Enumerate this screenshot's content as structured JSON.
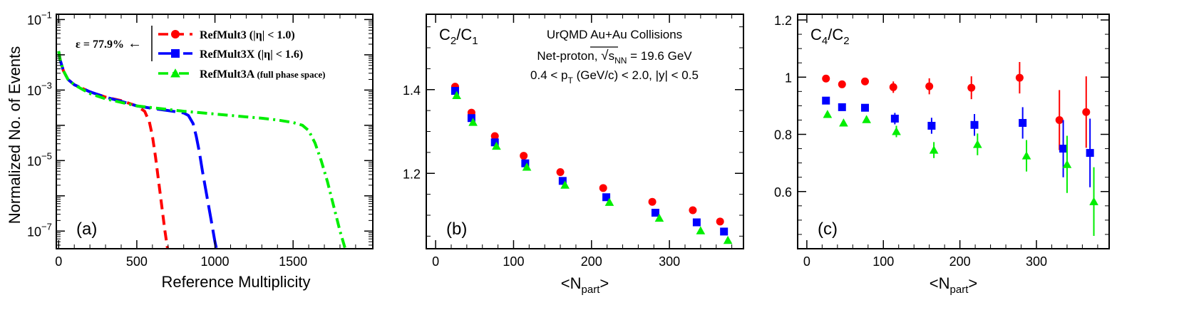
{
  "colors": {
    "red": "#ff0000",
    "blue": "#0000ff",
    "green": "#00ee00",
    "axis": "#000000"
  },
  "chart_data": [
    {
      "panel_label": "(a)",
      "type": "line",
      "xlabel": "Reference Multiplicity",
      "ylabel": "Normalized No. of Events",
      "y_scale": "log",
      "xlim": [
        -15,
        2010
      ],
      "ylim_log10": [
        -7.5,
        -0.85
      ],
      "x_ticks": [
        0,
        500,
        1000,
        1500
      ],
      "x_tick_labels": [
        "0",
        "500",
        "1000",
        "1500"
      ],
      "y_tick_exponents": [
        -1,
        -3,
        -5,
        -7
      ],
      "y_tick_labels": [
        "10",
        "10",
        "10",
        "10"
      ],
      "y_tick_sup": [
        "−1",
        "−3",
        "−5",
        "−7"
      ],
      "annotation": {
        "text": "ε = 77.9%",
        "arrow": "←",
        "points_to": "RefMult3X"
      },
      "legend_position": "top-right",
      "series": [
        {
          "name": "RefMult3",
          "legend_suffix": "(|η| < 1.0)",
          "color": "red",
          "marker": "circle",
          "dash": "dashed",
          "x": [
            0,
            10,
            30,
            60,
            100,
            200,
            300,
            400,
            500,
            550,
            580,
            600,
            620,
            640,
            660,
            680,
            700
          ],
          "log10_y": [
            -1.9,
            -2.15,
            -2.45,
            -2.7,
            -2.85,
            -3.05,
            -3.2,
            -3.3,
            -3.45,
            -3.6,
            -3.9,
            -4.3,
            -4.9,
            -5.6,
            -6.3,
            -7.0,
            -7.6
          ]
        },
        {
          "name": "RefMult3X",
          "legend_suffix": "(|η| < 1.6)",
          "color": "blue",
          "marker": "square",
          "dash": "long-dash",
          "x": [
            0,
            10,
            30,
            60,
            100,
            200,
            300,
            400,
            500,
            600,
            700,
            800,
            830,
            860,
            880,
            900,
            920,
            940,
            960,
            980,
            1000,
            1020
          ],
          "log10_y": [
            -1.9,
            -2.15,
            -2.45,
            -2.7,
            -2.85,
            -3.05,
            -3.2,
            -3.32,
            -3.45,
            -3.52,
            -3.58,
            -3.65,
            -3.72,
            -3.95,
            -4.3,
            -4.75,
            -5.3,
            -5.8,
            -6.3,
            -6.8,
            -7.3,
            -7.7
          ]
        },
        {
          "name": "RefMult3A",
          "legend_suffix": "(full phase space)",
          "color": "green",
          "marker": "triangle",
          "dash": "dash-dot",
          "x": [
            0,
            10,
            30,
            60,
            100,
            200,
            300,
            400,
            500,
            600,
            700,
            800,
            900,
            1000,
            1100,
            1200,
            1300,
            1400,
            1500,
            1560,
            1600,
            1640,
            1680,
            1720,
            1760,
            1800,
            1840
          ],
          "log10_y": [
            -1.9,
            -2.15,
            -2.45,
            -2.7,
            -2.85,
            -3.1,
            -3.25,
            -3.35,
            -3.45,
            -3.5,
            -3.55,
            -3.6,
            -3.64,
            -3.68,
            -3.72,
            -3.76,
            -3.8,
            -3.85,
            -3.92,
            -4.0,
            -4.15,
            -4.5,
            -5.0,
            -5.6,
            -6.3,
            -7.0,
            -7.6
          ]
        }
      ]
    },
    {
      "panel_label": "(b)",
      "type": "scatter",
      "xlabel": "<N",
      "xlabel_sub": "part",
      "xlabel_end": ">",
      "ylabel": "C",
      "ylabel_sub1": "2",
      "ylabel_mid": "/C",
      "ylabel_sub2": "1",
      "xlim": [
        -12,
        395
      ],
      "ylim": [
        1.02,
        1.58
      ],
      "x_ticks": [
        0,
        100,
        200,
        300
      ],
      "x_tick_labels": [
        "0",
        "100",
        "200",
        "300"
      ],
      "y_ticks": [
        1.2,
        1.4
      ],
      "y_tick_labels": [
        "1.2",
        "1.4"
      ],
      "text_lines": {
        "line1": "UrQMD Au+Au Collisions",
        "line2_pre": "Net-proton,",
        "line2_sqrt": "s",
        "line2_sub": "NN",
        "line2_post": "= 19.6 GeV",
        "line3_pre": "0.4 < p",
        "line3_sub": "T",
        "line3_post": "(GeV/c) < 2.0, |y| < 0.5"
      },
      "series": [
        {
          "name": "RefMult3",
          "color": "red",
          "marker": "circle",
          "x": [
            25,
            46,
            76,
            113,
            160,
            215,
            278,
            330,
            365
          ],
          "y": [
            1.407,
            1.345,
            1.289,
            1.242,
            1.203,
            1.165,
            1.132,
            1.112,
            1.085
          ]
        },
        {
          "name": "RefMult3X",
          "color": "blue",
          "marker": "square",
          "x": [
            25,
            46,
            76,
            115,
            163,
            219,
            282,
            335,
            370
          ],
          "y": [
            1.397,
            1.332,
            1.274,
            1.224,
            1.182,
            1.143,
            1.106,
            1.083,
            1.061
          ]
        },
        {
          "name": "RefMult3A",
          "color": "green",
          "marker": "triangle",
          "x": [
            27,
            48,
            78,
            117,
            166,
            223,
            287,
            340,
            375
          ],
          "y": [
            1.386,
            1.322,
            1.265,
            1.215,
            1.172,
            1.131,
            1.093,
            1.063,
            1.04
          ]
        }
      ]
    },
    {
      "panel_label": "(c)",
      "type": "scatter",
      "xlabel": "<N",
      "xlabel_sub": "part",
      "xlabel_end": ">",
      "ylabel": "C",
      "ylabel_sub1": "4",
      "ylabel_mid": "/C",
      "ylabel_sub2": "2",
      "xlim": [
        -12,
        395
      ],
      "ylim": [
        0.4,
        1.22
      ],
      "x_ticks": [
        0,
        100,
        200,
        300
      ],
      "x_tick_labels": [
        "0",
        "100",
        "200",
        "300"
      ],
      "y_ticks": [
        0.6,
        0.8,
        1.0,
        1.2
      ],
      "y_tick_labels": [
        "0.6",
        "0.8",
        "1",
        "1.2"
      ],
      "series": [
        {
          "name": "RefMult3",
          "color": "red",
          "marker": "circle",
          "x": [
            25,
            46,
            76,
            113,
            160,
            215,
            278,
            330,
            365
          ],
          "y": [
            0.995,
            0.975,
            0.985,
            0.965,
            0.968,
            0.963,
            0.998,
            0.85,
            0.878
          ],
          "yerr": [
            0.008,
            0.01,
            0.012,
            0.02,
            0.028,
            0.04,
            0.055,
            0.105,
            0.125
          ]
        },
        {
          "name": "RefMult3X",
          "color": "blue",
          "marker": "square",
          "x": [
            25,
            46,
            76,
            115,
            163,
            219,
            282,
            335,
            370
          ],
          "y": [
            0.918,
            0.895,
            0.893,
            0.855,
            0.83,
            0.833,
            0.84,
            0.75,
            0.735
          ],
          "yerr": [
            0.008,
            0.01,
            0.012,
            0.02,
            0.028,
            0.038,
            0.055,
            0.1,
            0.12
          ]
        },
        {
          "name": "RefMult3A",
          "color": "green",
          "marker": "triangle",
          "x": [
            27,
            48,
            78,
            117,
            166,
            223,
            287,
            340,
            375
          ],
          "y": [
            0.87,
            0.84,
            0.852,
            0.81,
            0.745,
            0.765,
            0.725,
            0.695,
            0.565
          ],
          "yerr": [
            0.008,
            0.01,
            0.012,
            0.02,
            0.028,
            0.038,
            0.055,
            0.1,
            0.12
          ]
        }
      ]
    }
  ]
}
